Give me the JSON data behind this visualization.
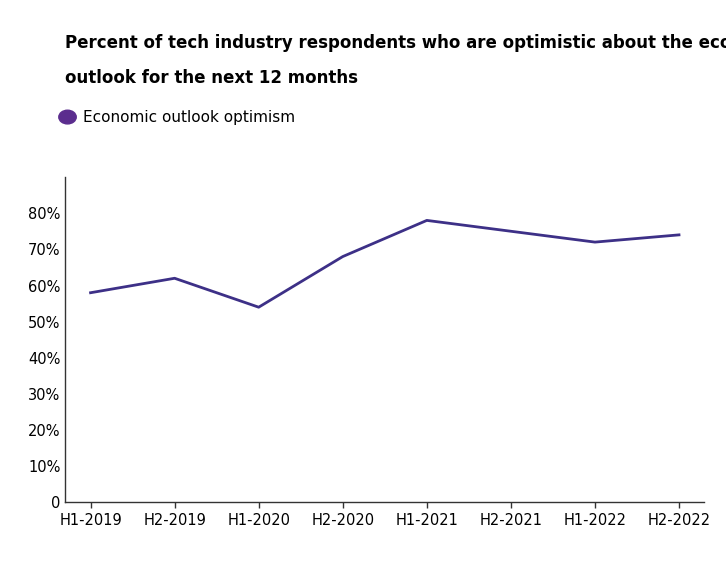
{
  "title_line1": "Percent of tech industry respondents who are optimistic about the economic",
  "title_line2": "outlook for the next 12 months",
  "legend_label": "Economic outlook optimism",
  "x_labels": [
    "H1-2019",
    "H2-2019",
    "H1-2020",
    "H2-2020",
    "H1-2021",
    "H2-2021",
    "H1-2022",
    "H2-2022"
  ],
  "y_values": [
    0.58,
    0.62,
    0.54,
    0.68,
    0.78,
    0.75,
    0.72,
    0.74
  ],
  "line_color": "#3d3087",
  "legend_marker_color": "#5b2d8e",
  "ylim": [
    0,
    0.9
  ],
  "yticks": [
    0,
    0.1,
    0.2,
    0.3,
    0.4,
    0.5,
    0.6,
    0.7,
    0.8
  ],
  "background_color": "#ffffff",
  "title_fontsize": 12,
  "legend_fontsize": 11,
  "tick_fontsize": 10.5,
  "line_width": 2.0
}
